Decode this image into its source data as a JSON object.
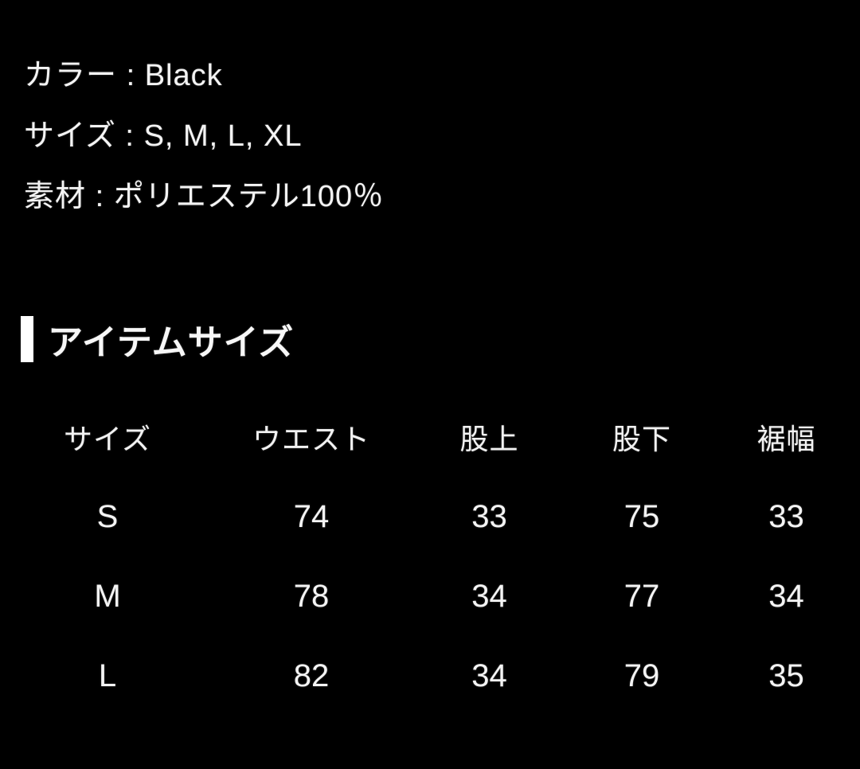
{
  "page": {
    "background_color": "#000000",
    "text_color": "#f2f2f2",
    "accent_bar_color": "#ffffff"
  },
  "specs": {
    "separator": " : ",
    "lines": [
      {
        "label": "カラー",
        "value": "Black"
      },
      {
        "label": "サイズ",
        "value": "S, M, L, XL"
      },
      {
        "label": "素材",
        "value": "ポリエステル100％"
      }
    ]
  },
  "section": {
    "title": "アイテムサイズ"
  },
  "size_table": {
    "columns": [
      "サイズ",
      "ウエスト",
      "股上",
      "股下",
      "裾幅"
    ],
    "rows": [
      {
        "size": "S",
        "values": [
          "74",
          "33",
          "75",
          "33"
        ]
      },
      {
        "size": "M",
        "values": [
          "78",
          "34",
          "77",
          "34"
        ]
      },
      {
        "size": "L",
        "values": [
          "82",
          "34",
          "79",
          "35"
        ]
      }
    ]
  }
}
